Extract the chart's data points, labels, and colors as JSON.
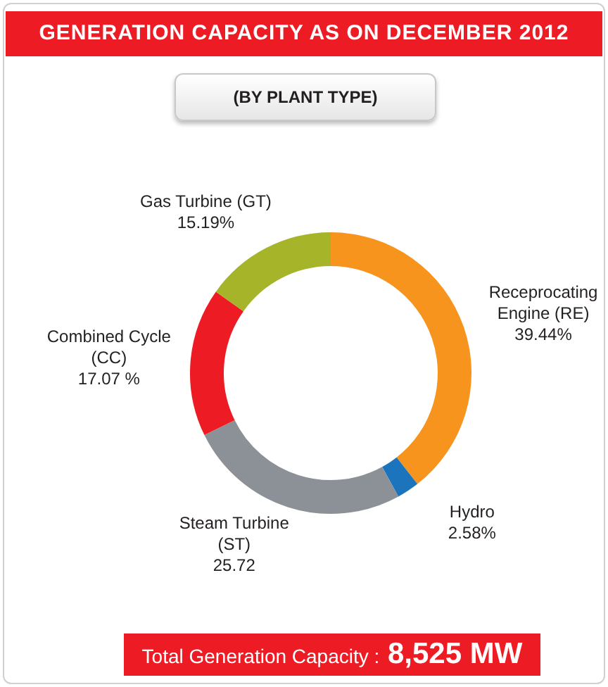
{
  "chart_data": {
    "type": "donut",
    "title": "GENERATION CAPACITY AS ON DECEMBER 2012",
    "subtitle": "(BY PLANT TYPE)",
    "categories": [
      "Receprocating Engine (RE)",
      "Hydro",
      "Steam Turbine (ST)",
      "Combined Cycle (CC)",
      "Gas Turbine (GT)"
    ],
    "values": [
      39.44,
      2.58,
      25.72,
      17.07,
      15.19
    ],
    "value_labels": [
      "39.44%",
      "2.58%",
      "25.72",
      "17.07 %",
      "15.19%"
    ],
    "colors": [
      "#f7941d",
      "#1c75bc",
      "#8c9197",
      "#ed1c24",
      "#a6b42a"
    ],
    "legend": false,
    "annotations": [
      "Total Generation Capacity : 8,525 MW"
    ]
  }
}
